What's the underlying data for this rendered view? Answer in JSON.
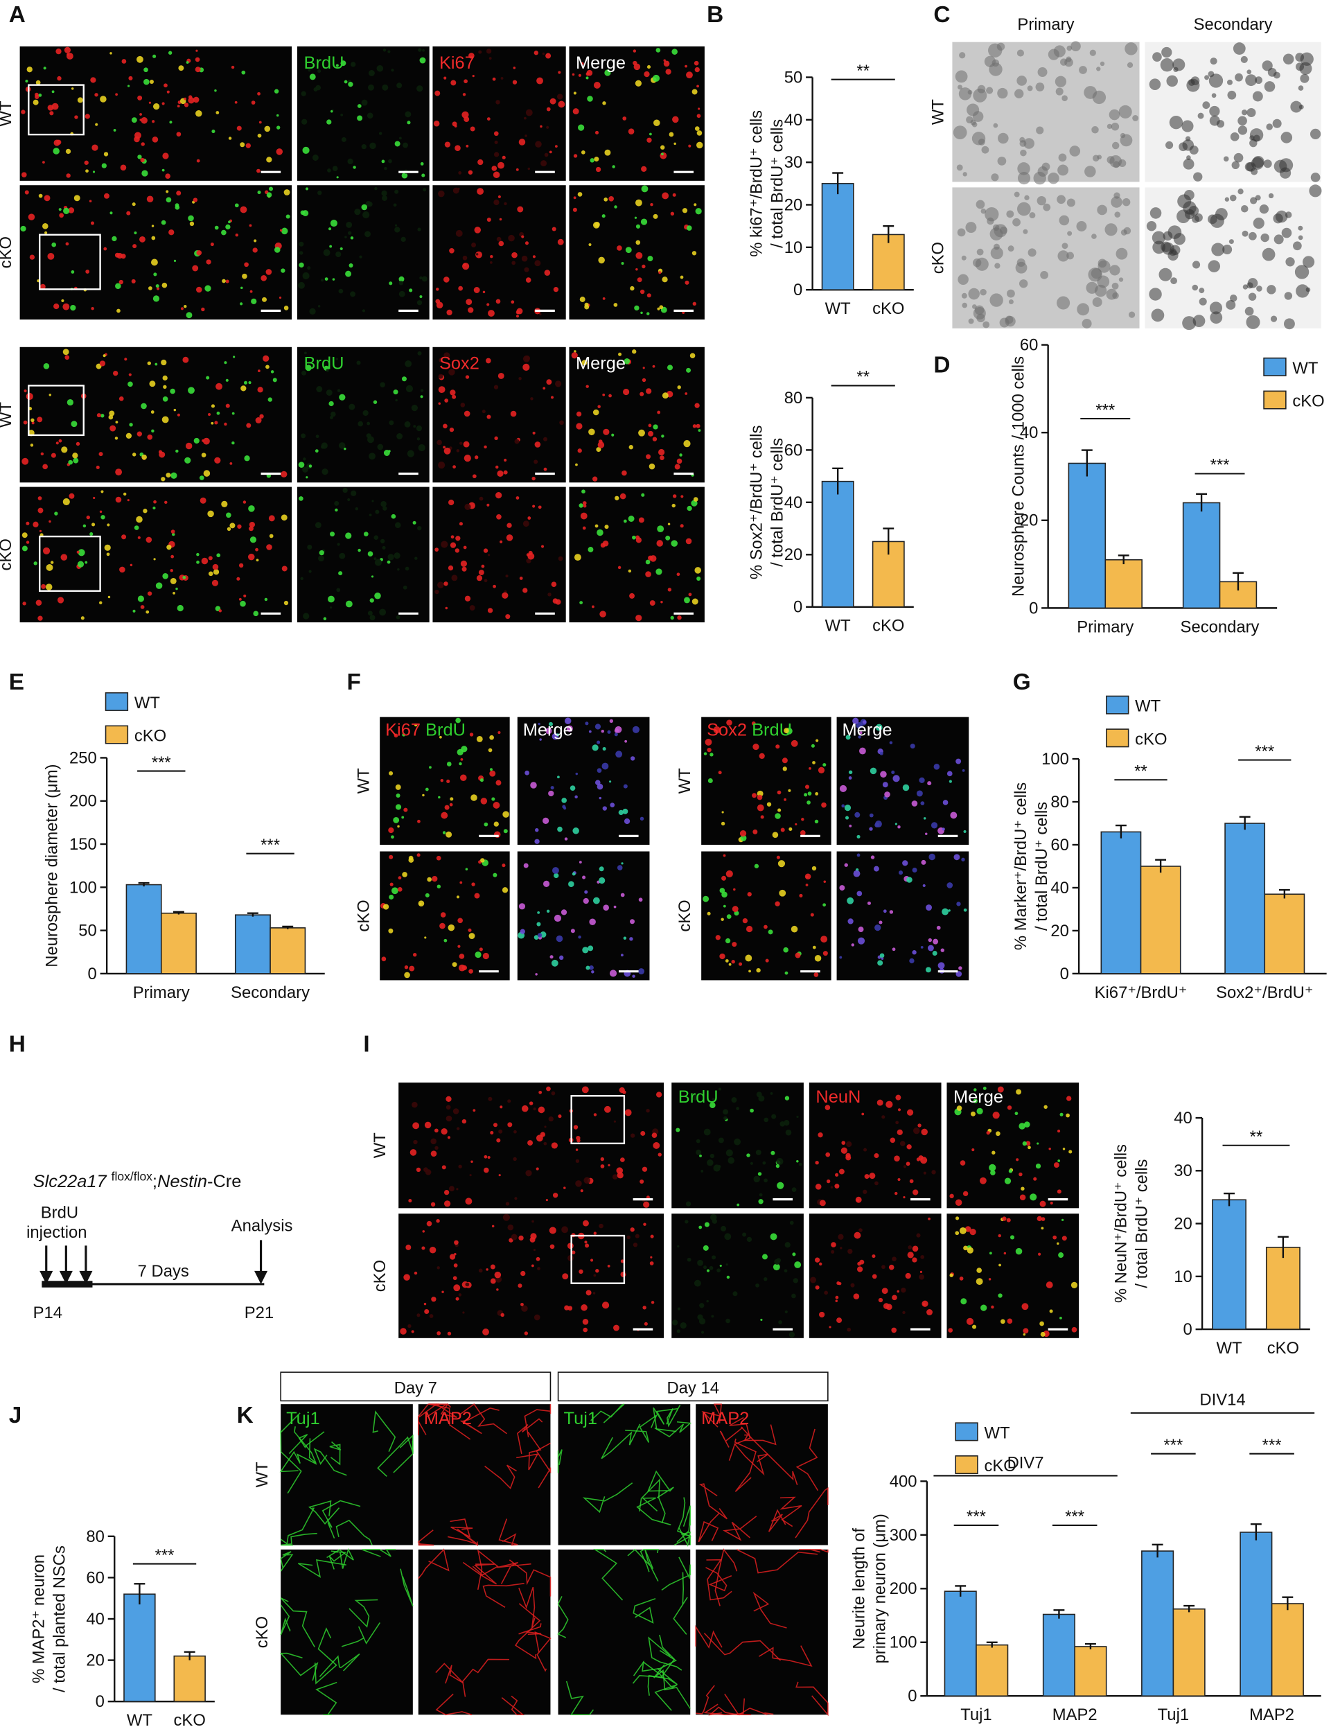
{
  "figure": {
    "A": {
      "letter": "A",
      "sections": [
        {
          "channels": [
            "BrdU",
            "Ki67",
            "Merge"
          ],
          "rows": [
            "WT",
            "cKO"
          ]
        },
        {
          "channels": [
            "BrdU",
            "Sox2",
            "Merge"
          ],
          "rows": [
            "WT",
            "cKO"
          ]
        }
      ]
    },
    "C": {
      "letter": "C",
      "columns": [
        "Primary",
        "Secondary"
      ],
      "rows": [
        "WT",
        "cKO"
      ]
    },
    "F": {
      "letter": "F",
      "blocks": [
        {
          "markers": [
            "Ki67",
            "BrdU"
          ],
          "merge": "Merge",
          "rows": [
            "WT",
            "cKO"
          ]
        },
        {
          "markers": [
            "Sox2",
            "BrdU"
          ],
          "merge": "Merge",
          "rows": [
            "WT",
            "cKO"
          ]
        }
      ]
    },
    "H": {
      "letter": "H",
      "genotype": {
        "gene": "Slc22a17",
        "allele": "flox/flox",
        "separator": ";",
        "driver": "Nestin",
        "suffix": "-Cre"
      },
      "injection": [
        "BrdU",
        "injection"
      ],
      "analysis": "Analysis",
      "interval": "7 Days",
      "start": "P14",
      "end": "P21"
    },
    "I": {
      "letter": "I",
      "channels": [
        "BrdU",
        "NeuN",
        "Merge"
      ],
      "rows": [
        "WT",
        "cKO"
      ]
    },
    "K": {
      "letter": "K",
      "days": [
        {
          "title": "Day 7",
          "channels": [
            "Tuj1",
            "MAP2"
          ]
        },
        {
          "title": "Day 14",
          "channels": [
            "Tuj1",
            "MAP2"
          ]
        }
      ],
      "rows": [
        "WT",
        "cKO"
      ]
    }
  },
  "chart_data": [
    {
      "type": "bar",
      "letter": "B",
      "ylabel": [
        "% ki67⁺/BrdU⁺ cells",
        "/ total BrdU⁺ cells"
      ],
      "categories": [
        "WT",
        "cKO"
      ],
      "values": [
        25,
        13
      ],
      "errors": [
        2.5,
        2
      ],
      "colors": [
        "#4e9fe3",
        "#f3b94d"
      ],
      "ylim": [
        0,
        50
      ],
      "yticks": [
        0,
        10,
        20,
        30,
        40,
        50
      ],
      "significance": [
        "**"
      ]
    },
    {
      "type": "bar",
      "ylabel": [
        "% Sox2⁺/BrdU⁺ cells",
        "/ total BrdU⁺ cells"
      ],
      "categories": [
        "WT",
        "cKO"
      ],
      "values": [
        48,
        25
      ],
      "errors": [
        5,
        5
      ],
      "colors": [
        "#4e9fe3",
        "#f3b94d"
      ],
      "ylim": [
        0,
        80
      ],
      "yticks": [
        0,
        20,
        40,
        60,
        80
      ],
      "significance": [
        "**"
      ]
    },
    {
      "type": "grouped-bar",
      "letter": "D",
      "ylabel": [
        "Neurosphere Counts / 1000 cells"
      ],
      "categories": [
        "Primary",
        "Secondary"
      ],
      "series": [
        {
          "name": "WT",
          "color": "#4e9fe3",
          "values": [
            33,
            24
          ],
          "errors": [
            3,
            2
          ]
        },
        {
          "name": "cKO",
          "color": "#f3b94d",
          "values": [
            11,
            6
          ],
          "errors": [
            1,
            2
          ]
        }
      ],
      "ylim": [
        0,
        60
      ],
      "yticks": [
        0,
        20,
        40,
        60
      ],
      "significance": [
        "***",
        "***"
      ],
      "legend": "upper right"
    },
    {
      "type": "grouped-bar",
      "letter": "E",
      "ylabel": [
        "Neurosphere diameter (μm)"
      ],
      "categories": [
        "Primary",
        "Secondary"
      ],
      "series": [
        {
          "name": "WT",
          "color": "#4e9fe3",
          "values": [
            103,
            68
          ],
          "errors": [
            2,
            2
          ]
        },
        {
          "name": "cKO",
          "color": "#f3b94d",
          "values": [
            70,
            53
          ],
          "errors": [
            1.5,
            1.5
          ]
        }
      ],
      "ylim": [
        0,
        250
      ],
      "yticks": [
        0,
        50,
        100,
        150,
        200,
        250
      ],
      "significance": [
        "***",
        "***"
      ],
      "legend": "upper left"
    },
    {
      "type": "grouped-bar",
      "letter": "G",
      "ylabel": [
        "% Marker⁺/BrdU⁺ cells",
        "/ total BrdU⁺ cells"
      ],
      "categories": [
        "Ki67⁺/BrdU⁺",
        "Sox2⁺/BrdU⁺"
      ],
      "series": [
        {
          "name": "WT",
          "color": "#4e9fe3",
          "values": [
            66,
            70
          ],
          "errors": [
            3,
            3
          ]
        },
        {
          "name": "cKO",
          "color": "#f3b94d",
          "values": [
            50,
            37
          ],
          "errors": [
            3,
            2
          ]
        }
      ],
      "ylim": [
        0,
        100
      ],
      "yticks": [
        0,
        20,
        40,
        60,
        80,
        100
      ],
      "significance": [
        "**",
        "***"
      ],
      "legend": "upper left"
    },
    {
      "type": "bar",
      "ylabel": [
        "% NeuN⁺/BrdU⁺ cells",
        "/ total BrdU⁺ cells"
      ],
      "categories": [
        "WT",
        "cKO"
      ],
      "values": [
        24.5,
        15.5
      ],
      "errors": [
        1.2,
        2
      ],
      "colors": [
        "#4e9fe3",
        "#f3b94d"
      ],
      "ylim": [
        0,
        40
      ],
      "yticks": [
        0,
        10,
        20,
        30,
        40
      ],
      "significance": [
        "**"
      ]
    },
    {
      "type": "bar",
      "letter": "J",
      "ylabel": [
        "% MAP2⁺ neuron",
        "/ total planted NSCs"
      ],
      "categories": [
        "WT",
        "cKO"
      ],
      "values": [
        52,
        22
      ],
      "errors": [
        5,
        2
      ],
      "colors": [
        "#4e9fe3",
        "#f3b94d"
      ],
      "ylim": [
        0,
        80
      ],
      "yticks": [
        0,
        20,
        40,
        60,
        80
      ],
      "significance": [
        "***"
      ]
    },
    {
      "type": "grouped-bar",
      "ylabel": [
        "Neurite length of",
        "primary neuron (μm)"
      ],
      "categories": [
        "Tuj1",
        "MAP2",
        "Tuj1",
        "MAP2"
      ],
      "groups": [
        "DIV7",
        "DIV14"
      ],
      "series": [
        {
          "name": "WT",
          "color": "#4e9fe3",
          "values": [
            195,
            152,
            270,
            305
          ],
          "errors": [
            10,
            8,
            12,
            15
          ]
        },
        {
          "name": "cKO",
          "color": "#f3b94d",
          "values": [
            95,
            92,
            162,
            172
          ],
          "errors": [
            5,
            5,
            6,
            12
          ]
        }
      ],
      "ylim": [
        0,
        400
      ],
      "yticks": [
        0,
        100,
        200,
        300,
        400
      ],
      "significance": [
        "***",
        "***",
        "***",
        "***"
      ],
      "legend": "upper left"
    }
  ]
}
